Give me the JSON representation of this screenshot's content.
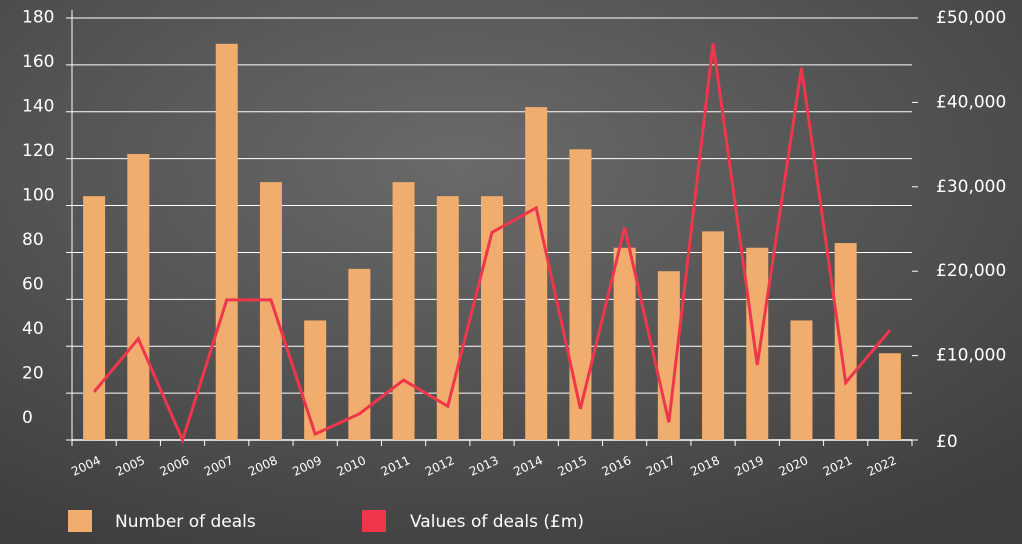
{
  "chart_data": {
    "type": "bar-line",
    "categories": [
      "2004",
      "2005",
      "2006",
      "2007",
      "2008",
      "2009",
      "2010",
      "2011",
      "2012",
      "2013",
      "2014",
      "2015",
      "2016",
      "2017",
      "2018",
      "2019",
      "2020",
      "2021",
      "2022"
    ],
    "series": [
      {
        "name": "Number of deals",
        "type": "bar",
        "color": "#f0ad6e",
        "values": [
          104,
          122,
          0,
          169,
          110,
          51,
          73,
          110,
          104,
          104,
          142,
          124,
          82,
          72,
          89,
          82,
          51,
          84,
          37
        ]
      },
      {
        "name": "Values of deals (£m)",
        "type": "line",
        "axis": "y2",
        "color": "#f0364a",
        "values": [
          5700,
          12000,
          0,
          16600,
          16600,
          700,
          3100,
          7100,
          4000,
          24600,
          27500,
          3700,
          25200,
          2100,
          47000,
          8900,
          44100,
          6800,
          13000
        ]
      }
    ],
    "ylim": [
      0,
      180
    ],
    "yticks": [
      0,
      20,
      40,
      60,
      80,
      100,
      120,
      140,
      160,
      180
    ],
    "y2lim": [
      0,
      50000
    ],
    "y2ticks": [
      {
        "value": 0,
        "label": "£0"
      },
      {
        "value": 10000,
        "label": "£10,000"
      },
      {
        "value": 20000,
        "label": "£20,000"
      },
      {
        "value": 30000,
        "label": "£30,000"
      },
      {
        "value": 40000,
        "label": "£40,000"
      },
      {
        "value": 50000,
        "label": "£50,000"
      }
    ],
    "grid": true
  }
}
